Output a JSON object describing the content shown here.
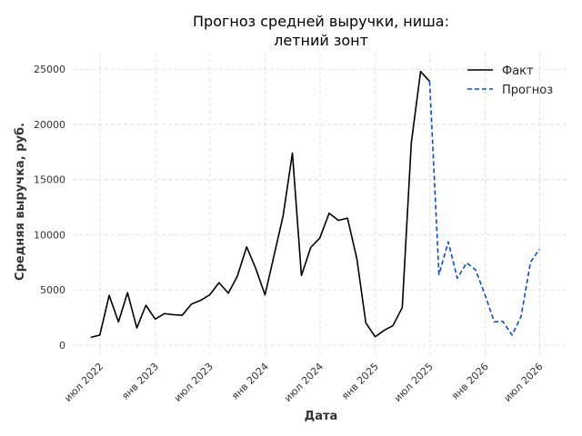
{
  "chart_data": {
    "type": "line",
    "title_lines": [
      "Прогноз средней выручки, ниша:",
      "летний зонт"
    ],
    "xlabel": "Дата",
    "ylabel": "Средняя выручка, руб.",
    "ylim": [
      -1000,
      26500
    ],
    "yticks": [
      0,
      5000,
      10000,
      15000,
      20000,
      25000
    ],
    "xticks": [
      {
        "date": "2022-07-01",
        "label": "июл 2022"
      },
      {
        "date": "2023-01-01",
        "label": "янв 2023"
      },
      {
        "date": "2023-07-01",
        "label": "июл 2023"
      },
      {
        "date": "2024-01-01",
        "label": "янв 2024"
      },
      {
        "date": "2024-07-01",
        "label": "июл 2024"
      },
      {
        "date": "2025-01-01",
        "label": "янв 2025"
      },
      {
        "date": "2025-07-01",
        "label": "июл 2025"
      },
      {
        "date": "2026-01-01",
        "label": "янв 2026"
      },
      {
        "date": "2026-07-01",
        "label": "июл 2026"
      }
    ],
    "xlim": [
      "2022-04-01",
      "2026-10-01"
    ],
    "grid": true,
    "legend_position": "top-right",
    "series": [
      {
        "name": "Факт",
        "color": "#000000",
        "style": "solid",
        "points": [
          [
            "2022-05-31",
            700
          ],
          [
            "2022-06-30",
            900
          ],
          [
            "2022-07-31",
            4500
          ],
          [
            "2022-08-31",
            2100
          ],
          [
            "2022-09-30",
            4750
          ],
          [
            "2022-10-31",
            1550
          ],
          [
            "2022-11-30",
            3600
          ],
          [
            "2022-12-31",
            2350
          ],
          [
            "2023-01-31",
            2850
          ],
          [
            "2023-02-28",
            2750
          ],
          [
            "2023-03-31",
            2700
          ],
          [
            "2023-04-30",
            3700
          ],
          [
            "2023-05-31",
            4050
          ],
          [
            "2023-06-30",
            4550
          ],
          [
            "2023-07-31",
            5650
          ],
          [
            "2023-08-31",
            4700
          ],
          [
            "2023-09-30",
            6250
          ],
          [
            "2023-10-31",
            8900
          ],
          [
            "2023-11-30",
            6950
          ],
          [
            "2023-12-31",
            4550
          ],
          [
            "2024-01-31",
            8250
          ],
          [
            "2024-02-29",
            11700
          ],
          [
            "2024-03-31",
            17400
          ],
          [
            "2024-04-30",
            6300
          ],
          [
            "2024-05-31",
            8850
          ],
          [
            "2024-06-30",
            9700
          ],
          [
            "2024-07-31",
            11950
          ],
          [
            "2024-08-31",
            11300
          ],
          [
            "2024-09-30",
            11500
          ],
          [
            "2024-10-31",
            7850
          ],
          [
            "2024-11-30",
            2000
          ],
          [
            "2024-12-31",
            750
          ],
          [
            "2025-01-31",
            1350
          ],
          [
            "2025-02-28",
            1750
          ],
          [
            "2025-03-31",
            3400
          ],
          [
            "2025-04-30",
            18300
          ],
          [
            "2025-05-31",
            24800
          ],
          [
            "2025-06-30",
            23900
          ]
        ]
      },
      {
        "name": "Прогноз",
        "color": "#0a4bd6",
        "style": "dashed",
        "points": [
          [
            "2025-06-30",
            23900
          ],
          [
            "2025-07-31",
            6400
          ],
          [
            "2025-08-31",
            9350
          ],
          [
            "2025-09-30",
            6050
          ],
          [
            "2025-10-31",
            7450
          ],
          [
            "2025-11-30",
            6800
          ],
          [
            "2025-12-31",
            4550
          ],
          [
            "2026-01-31",
            2100
          ],
          [
            "2026-02-28",
            2150
          ],
          [
            "2026-03-31",
            900
          ],
          [
            "2026-04-30",
            2600
          ],
          [
            "2026-05-31",
            7500
          ],
          [
            "2026-06-30",
            8700
          ]
        ]
      }
    ]
  }
}
